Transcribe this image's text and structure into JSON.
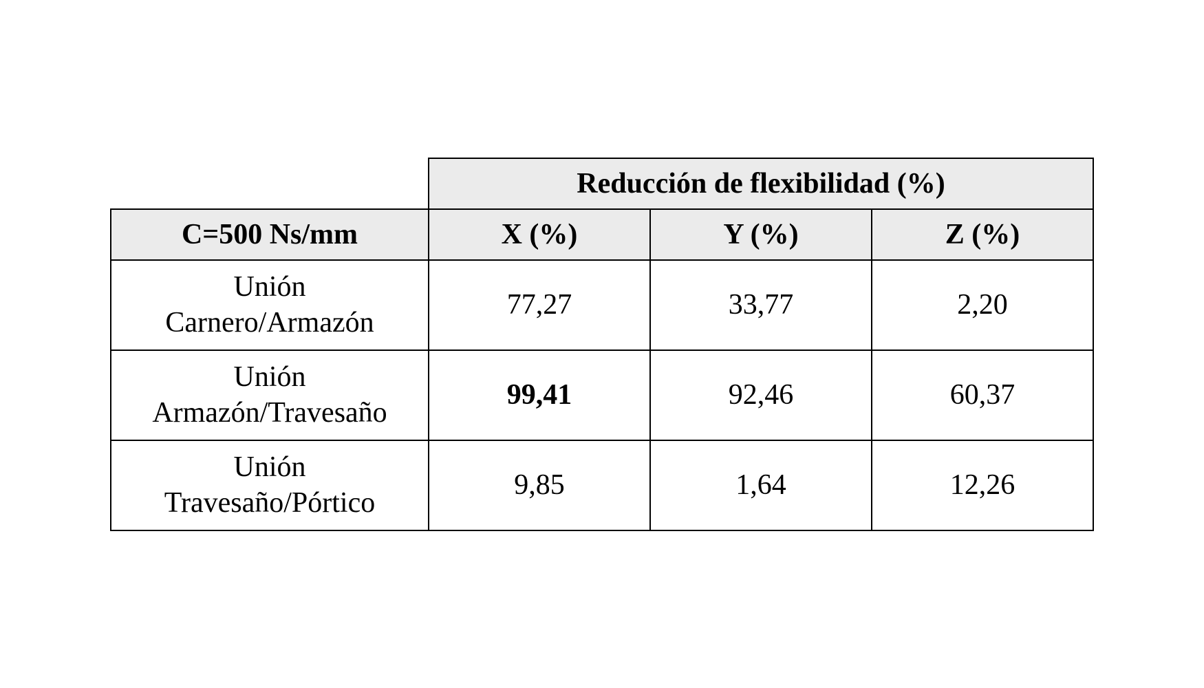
{
  "table": {
    "header_title": "Reducción de flexibilidad (%)",
    "row_header_label": "C=500 Ns/mm",
    "columns": {
      "x": "X (%)",
      "y": "Y (%)",
      "z": "Z (%)"
    },
    "rows": [
      {
        "label_line1": "Unión",
        "label_line2": "Carnero/Armazón",
        "x": "77,27",
        "y": "33,77",
        "z": "2,20",
        "x_bold": false
      },
      {
        "label_line1": "Unión",
        "label_line2": "Armazón/Travesaño",
        "x": "99,41",
        "y": "92,46",
        "z": "60,37",
        "x_bold": true
      },
      {
        "label_line1": "Unión",
        "label_line2": "Travesaño/Pórtico",
        "x": "9,85",
        "y": "1,64",
        "z": "12,26",
        "x_bold": false
      }
    ],
    "style": {
      "header_bg": "#ebebeb",
      "border_color": "#000000",
      "background_color": "#ffffff",
      "font_family": "Times New Roman",
      "font_size_pt": 32,
      "cell_text_color": "#000000"
    }
  }
}
